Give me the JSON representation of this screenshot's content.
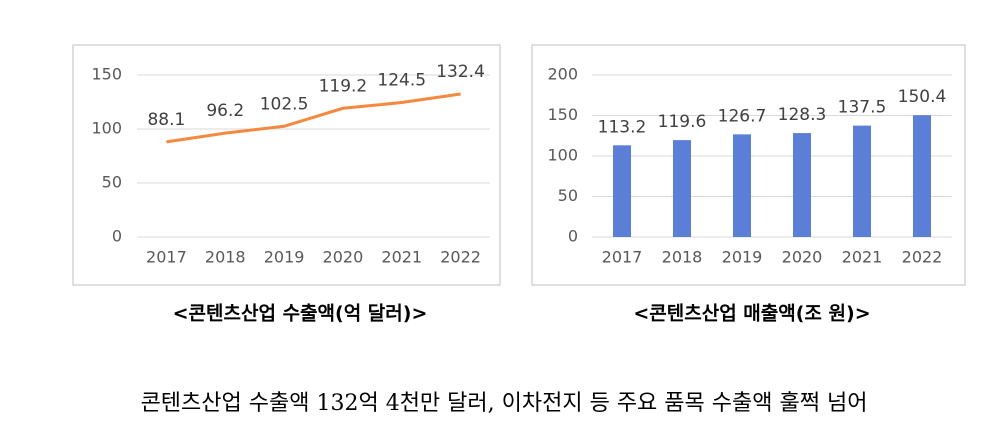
{
  "chart_data": [
    {
      "type": "line",
      "title": "<콘텐츠산업 수출액(억 달러)>",
      "categories": [
        "2017",
        "2018",
        "2019",
        "2020",
        "2021",
        "2022"
      ],
      "values": [
        88.1,
        96.2,
        102.5,
        119.2,
        124.5,
        132.4
      ],
      "color": "#f4883f",
      "ylim": [
        0,
        150
      ],
      "yticks": [
        0,
        50,
        100,
        150
      ],
      "grid": true
    },
    {
      "type": "bar",
      "title": "<콘텐츠산업 매출액(조 원)>",
      "categories": [
        "2017",
        "2018",
        "2019",
        "2020",
        "2021",
        "2022"
      ],
      "values": [
        113.2,
        119.6,
        126.7,
        128.3,
        137.5,
        150.4
      ],
      "color": "#5b7fd6",
      "ylim": [
        0,
        200
      ],
      "yticks": [
        0,
        50,
        100,
        150,
        200
      ],
      "grid": true
    }
  ],
  "headline": "콘텐츠산업 수출액 132억 4천만 달러, 이차전지 등 주요 품목 수출액 훌쩍 넘어"
}
